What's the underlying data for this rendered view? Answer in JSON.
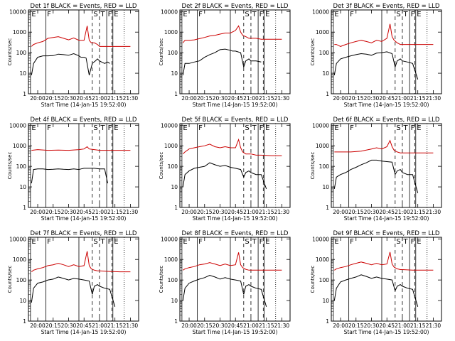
{
  "figure": {
    "time_label": "Start Time (14-Jan-15 19:52:00)",
    "x_ticks": [
      "20:00",
      "20:15",
      "20:30",
      "20:45",
      "21:00",
      "21:15",
      "21:30"
    ],
    "y_ticks": [
      "1",
      "10",
      "100",
      "1000",
      "10000"
    ],
    "ylabel": "Counts/sec",
    "colors": {
      "events": "#000000",
      "lld": "#cc0000",
      "axes": "#000000"
    },
    "x_unit": "minutes after 20:00",
    "xlim": [
      -9,
      98
    ],
    "ylim": [
      1,
      12000
    ],
    "y_scale": "log",
    "markers": [
      {
        "label": "E",
        "t": -7,
        "style": "solid"
      },
      {
        "label": "F",
        "t": 8,
        "style": "solid"
      },
      {
        "label": "S",
        "t": 53,
        "style": "dashed"
      },
      {
        "label": "T",
        "t": 60,
        "style": "dashed"
      },
      {
        "label": "F",
        "t": 67,
        "style": "solid"
      },
      {
        "label": "E",
        "t": 73,
        "style": "solid"
      }
    ],
    "marker_extra_lines": [
      {
        "t": 40,
        "style": "solid"
      },
      {
        "t": 72,
        "style": "dashed"
      },
      {
        "t": 84,
        "style": "dotted"
      }
    ]
  },
  "chart_data": [
    {
      "type": "line",
      "title": "Det 1f BLACK = Events, RED = LLD",
      "series": [
        {
          "name": "Events",
          "color": "#000000",
          "x": [
            -6,
            -4,
            0,
            5,
            10,
            15,
            20,
            25,
            30,
            35,
            40,
            42,
            45,
            47,
            50,
            53,
            56,
            58,
            60,
            62,
            65,
            68,
            70
          ],
          "y": [
            8,
            30,
            60,
            70,
            70,
            72,
            85,
            80,
            75,
            90,
            70,
            60,
            60,
            55,
            8,
            30,
            40,
            50,
            40,
            35,
            30,
            35,
            30
          ]
        },
        {
          "name": "LLD",
          "color": "#cc0000",
          "x": [
            -6,
            -4,
            0,
            5,
            10,
            15,
            20,
            25,
            30,
            35,
            40,
            45,
            48,
            50,
            52,
            55,
            58,
            60,
            65,
            70,
            80,
            90
          ],
          "y": [
            200,
            250,
            300,
            350,
            500,
            550,
            600,
            500,
            420,
            520,
            400,
            400,
            2000,
            400,
            300,
            300,
            250,
            200,
            200,
            200,
            200,
            200
          ]
        }
      ]
    },
    {
      "type": "line",
      "title": "Det 2f BLACK = Events, RED = LLD",
      "series": [
        {
          "name": "Events",
          "color": "#000000",
          "x": [
            -6,
            -4,
            0,
            5,
            10,
            15,
            20,
            25,
            30,
            35,
            40,
            42,
            45,
            50,
            53,
            55,
            58,
            60,
            65,
            70
          ],
          "y": [
            8,
            30,
            30,
            35,
            40,
            60,
            80,
            100,
            140,
            150,
            130,
            120,
            120,
            100,
            20,
            40,
            50,
            40,
            40,
            35
          ]
        },
        {
          "name": "LLD",
          "color": "#cc0000",
          "x": [
            -6,
            -4,
            0,
            5,
            10,
            15,
            20,
            25,
            30,
            35,
            40,
            45,
            48,
            50,
            52,
            55,
            58,
            60,
            65,
            70,
            80,
            90
          ],
          "y": [
            300,
            400,
            400,
            420,
            480,
            550,
            650,
            700,
            800,
            900,
            900,
            1200,
            2000,
            1000,
            700,
            600,
            500,
            500,
            500,
            450,
            450,
            450
          ]
        }
      ]
    },
    {
      "type": "line",
      "title": "Det 3f BLACK = Events, RED = LLD",
      "series": [
        {
          "name": "Events",
          "color": "#000000",
          "x": [
            -6,
            -4,
            0,
            5,
            10,
            15,
            20,
            25,
            30,
            35,
            40,
            45,
            50,
            53,
            55,
            58,
            60,
            65,
            70,
            75
          ],
          "y": [
            8,
            30,
            50,
            60,
            70,
            80,
            90,
            85,
            75,
            95,
            100,
            110,
            90,
            20,
            40,
            50,
            40,
            35,
            30,
            5
          ]
        },
        {
          "name": "LLD",
          "color": "#cc0000",
          "x": [
            -6,
            -4,
            0,
            5,
            10,
            15,
            20,
            25,
            30,
            35,
            40,
            45,
            48,
            50,
            52,
            55,
            58,
            60,
            65,
            70,
            80,
            90
          ],
          "y": [
            250,
            250,
            200,
            250,
            300,
            350,
            400,
            350,
            300,
            400,
            350,
            500,
            2500,
            600,
            400,
            300,
            250,
            250,
            250,
            250,
            250,
            250
          ]
        }
      ]
    },
    {
      "type": "line",
      "title": "Det 4f BLACK = Events, RED = LLD",
      "series": [
        {
          "name": "Events",
          "color": "#000000",
          "x": [
            -6,
            -4,
            0,
            5,
            10,
            15,
            20,
            25,
            30,
            35,
            40,
            42,
            45,
            50,
            55,
            60,
            65,
            68
          ],
          "y": [
            15,
            70,
            75,
            75,
            70,
            72,
            75,
            72,
            70,
            75,
            70,
            75,
            80,
            80,
            80,
            75,
            75,
            15
          ]
        },
        {
          "name": "LLD",
          "color": "#cc0000",
          "x": [
            -6,
            0,
            10,
            20,
            30,
            40,
            45,
            48,
            50,
            55,
            60,
            70,
            80,
            90
          ],
          "y": [
            600,
            650,
            600,
            620,
            600,
            650,
            700,
            900,
            700,
            650,
            600,
            600,
            600,
            600
          ]
        }
      ]
    },
    {
      "type": "line",
      "title": "Det 5f BLACK = Events, RED = LLD",
      "series": [
        {
          "name": "Events",
          "color": "#000000",
          "x": [
            -6,
            -4,
            0,
            5,
            10,
            15,
            20,
            25,
            30,
            35,
            40,
            45,
            50,
            53,
            55,
            58,
            60,
            65,
            70,
            75
          ],
          "y": [
            10,
            40,
            60,
            80,
            90,
            100,
            150,
            120,
            100,
            110,
            90,
            80,
            70,
            30,
            50,
            60,
            50,
            40,
            40,
            8
          ]
        },
        {
          "name": "LLD",
          "color": "#cc0000",
          "x": [
            -6,
            -4,
            0,
            5,
            10,
            15,
            20,
            25,
            30,
            35,
            40,
            45,
            48,
            50,
            52,
            55,
            58,
            60,
            65,
            70,
            80,
            90
          ],
          "y": [
            400,
            500,
            700,
            800,
            900,
            1000,
            1200,
            900,
            800,
            900,
            800,
            800,
            2000,
            800,
            500,
            400,
            400,
            400,
            350,
            350,
            330,
            330
          ]
        }
      ]
    },
    {
      "type": "line",
      "title": "Det 6f BLACK = Events, RED = LLD",
      "series": [
        {
          "name": "Events",
          "color": "#000000",
          "x": [
            -6,
            -4,
            0,
            5,
            10,
            15,
            20,
            25,
            30,
            35,
            40,
            45,
            50,
            53,
            55,
            58,
            60,
            65,
            70,
            75
          ],
          "y": [
            8,
            30,
            40,
            50,
            70,
            90,
            120,
            150,
            200,
            200,
            180,
            170,
            160,
            40,
            60,
            70,
            50,
            40,
            40,
            5
          ]
        },
        {
          "name": "LLD",
          "color": "#cc0000",
          "x": [
            -6,
            0,
            10,
            20,
            30,
            35,
            40,
            45,
            48,
            50,
            52,
            55,
            58,
            60,
            65,
            70,
            80,
            90
          ],
          "y": [
            500,
            500,
            500,
            550,
            700,
            800,
            700,
            900,
            1800,
            900,
            600,
            500,
            450,
            450,
            450,
            450,
            450,
            450
          ]
        }
      ]
    },
    {
      "type": "line",
      "title": "Det 7f BLACK = Events, RED = LLD",
      "series": [
        {
          "name": "Events",
          "color": "#000000",
          "x": [
            -6,
            -4,
            0,
            5,
            10,
            15,
            20,
            25,
            30,
            35,
            40,
            45,
            50,
            53,
            55,
            58,
            60,
            65,
            70,
            75
          ],
          "y": [
            8,
            40,
            70,
            80,
            100,
            110,
            140,
            120,
            100,
            120,
            110,
            100,
            90,
            20,
            50,
            60,
            50,
            40,
            35,
            5
          ]
        },
        {
          "name": "LLD",
          "color": "#cc0000",
          "x": [
            -6,
            -4,
            0,
            5,
            10,
            15,
            20,
            25,
            30,
            35,
            40,
            45,
            48,
            50,
            52,
            55,
            58,
            60,
            65,
            70,
            80,
            90
          ],
          "y": [
            250,
            300,
            350,
            400,
            500,
            550,
            650,
            550,
            450,
            550,
            450,
            500,
            2500,
            500,
            350,
            300,
            280,
            280,
            270,
            260,
            250,
            250
          ]
        }
      ]
    },
    {
      "type": "line",
      "title": "Det 8f BLACK = Events, RED = LLD",
      "series": [
        {
          "name": "Events",
          "color": "#000000",
          "x": [
            -6,
            -4,
            0,
            5,
            10,
            15,
            20,
            25,
            30,
            35,
            40,
            45,
            50,
            53,
            55,
            58,
            60,
            65,
            70,
            75
          ],
          "y": [
            10,
            40,
            70,
            90,
            110,
            130,
            170,
            140,
            110,
            130,
            110,
            100,
            90,
            20,
            50,
            60,
            50,
            40,
            35,
            5
          ]
        },
        {
          "name": "LLD",
          "color": "#cc0000",
          "x": [
            -6,
            -4,
            0,
            5,
            10,
            15,
            20,
            25,
            30,
            35,
            40,
            45,
            48,
            50,
            52,
            55,
            58,
            60,
            65,
            70,
            80,
            90
          ],
          "y": [
            300,
            350,
            400,
            450,
            550,
            600,
            700,
            600,
            500,
            600,
            500,
            550,
            2200,
            550,
            400,
            330,
            300,
            300,
            300,
            300,
            300,
            300
          ]
        }
      ]
    },
    {
      "type": "line",
      "title": "Det 9f BLACK = Events, RED = LLD",
      "series": [
        {
          "name": "Events",
          "color": "#000000",
          "x": [
            -6,
            -4,
            0,
            5,
            10,
            15,
            20,
            25,
            30,
            35,
            40,
            45,
            50,
            53,
            55,
            58,
            60,
            65,
            70,
            75
          ],
          "y": [
            10,
            40,
            80,
            100,
            120,
            140,
            180,
            150,
            120,
            140,
            120,
            110,
            100,
            30,
            50,
            60,
            50,
            40,
            35,
            5
          ]
        },
        {
          "name": "LLD",
          "color": "#cc0000",
          "x": [
            -6,
            -4,
            0,
            5,
            10,
            15,
            20,
            25,
            30,
            35,
            40,
            45,
            48,
            50,
            52,
            55,
            58,
            60,
            65,
            70,
            80,
            90
          ],
          "y": [
            300,
            350,
            400,
            450,
            550,
            650,
            750,
            650,
            550,
            650,
            550,
            600,
            2300,
            600,
            420,
            350,
            320,
            320,
            310,
            300,
            300,
            300
          ]
        }
      ]
    }
  ]
}
